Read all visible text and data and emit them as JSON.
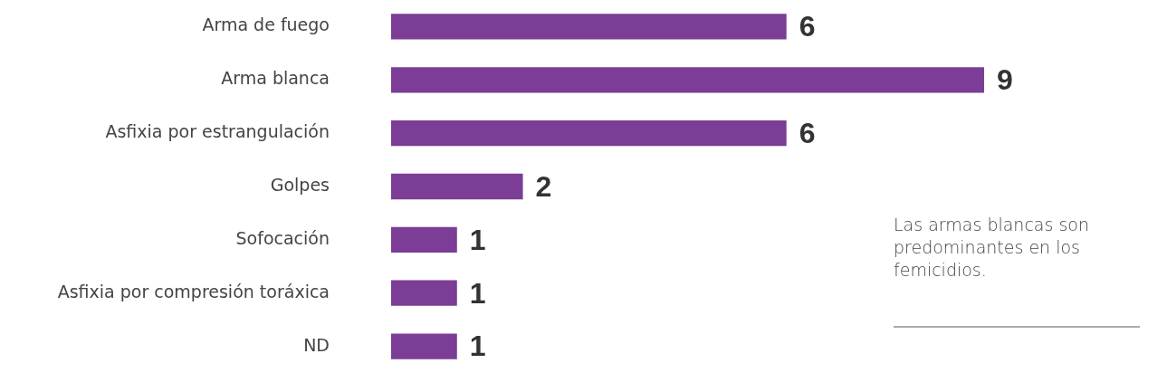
{
  "chart_data": {
    "type": "bar",
    "orientation": "horizontal",
    "categories": [
      "Arma de fuego",
      "Arma blanca",
      "Asfixia por estrangulación",
      "Golpes",
      "Sofocación",
      "Asfixia por compresión toráxica",
      "ND"
    ],
    "values": [
      6,
      9,
      6,
      2,
      1,
      1,
      1
    ],
    "color": "#7b3d96",
    "data_labels": true,
    "grid": false,
    "legend": false,
    "tick_labels": "y",
    "annotations": [
      "Las armas blancas son predominantes en los femicidios."
    ]
  }
}
